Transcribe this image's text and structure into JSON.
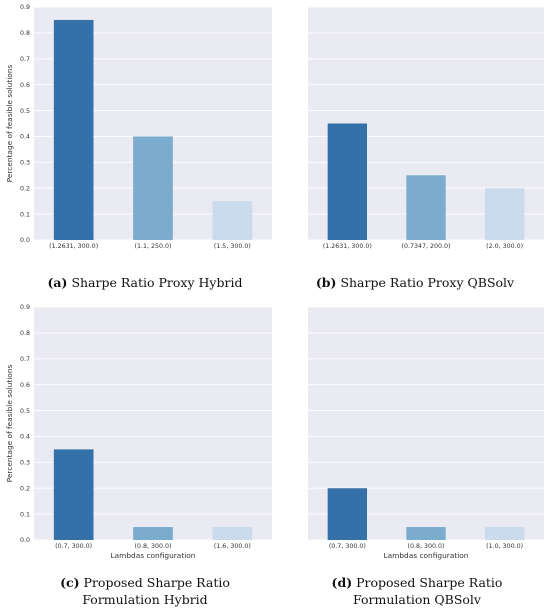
{
  "colors": {
    "plot_bg": "#eaeaf2",
    "grid": "#ffffff",
    "bar_dark": "#3471a8",
    "bar_mid": "#7babcd",
    "bar_light": "#c9dbec"
  },
  "chart_data": [
    {
      "type": "bar",
      "panel": "a",
      "caption_tag": "(a)",
      "caption_text": "Sharpe Ratio Proxy Hybrid",
      "categories": [
        "(1.2631, 300.0)",
        "(1.1, 250.0)",
        "(1.5, 300.0)"
      ],
      "values": [
        0.85,
        0.4,
        0.15
      ],
      "ylabel": "Percentage of feasible solutions",
      "xlabel": "",
      "ylim": [
        0,
        0.9
      ],
      "yticks": [
        "0.0",
        "0.1",
        "0.2",
        "0.3",
        "0.4",
        "0.5",
        "0.6",
        "0.7",
        "0.8",
        "0.9"
      ],
      "grid": true
    },
    {
      "type": "bar",
      "panel": "b",
      "caption_tag": "(b)",
      "caption_text": "Sharpe Ratio Proxy QBSolv",
      "categories": [
        "(1.2631, 300.0)",
        "(0.7347, 200.0)",
        "(2.0, 300.0)"
      ],
      "values": [
        0.45,
        0.25,
        0.2
      ],
      "ylabel": "",
      "xlabel": "",
      "ylim": [
        0,
        0.9
      ],
      "yticks": [],
      "grid": true
    },
    {
      "type": "bar",
      "panel": "c",
      "caption_tag": "(c)",
      "caption_text": "Proposed Sharpe Ratio",
      "caption_text2": "Formulation Hybrid",
      "categories": [
        "(0.7, 300.0)",
        "(0.8, 300.0)",
        "(1.6, 300.0)"
      ],
      "values": [
        0.35,
        0.05,
        0.05
      ],
      "ylabel": "Percentage of feasible solutions",
      "xlabel": "Lambdas configuration",
      "ylim": [
        0,
        0.9
      ],
      "yticks": [
        "0.0",
        "0.1",
        "0.2",
        "0.3",
        "0.4",
        "0.5",
        "0.6",
        "0.7",
        "0.8",
        "0.9"
      ],
      "grid": true
    },
    {
      "type": "bar",
      "panel": "d",
      "caption_tag": "(d)",
      "caption_text": "Proposed Sharpe Ratio",
      "caption_text2": "Formulation QBSolv",
      "categories": [
        "(0.7, 300.0)",
        "(0.8, 300.0)",
        "(1.0, 300.0)"
      ],
      "values": [
        0.2,
        0.05,
        0.05
      ],
      "ylabel": "",
      "xlabel": "Lambdas configuration",
      "ylim": [
        0,
        0.9
      ],
      "yticks": [],
      "grid": true
    }
  ]
}
